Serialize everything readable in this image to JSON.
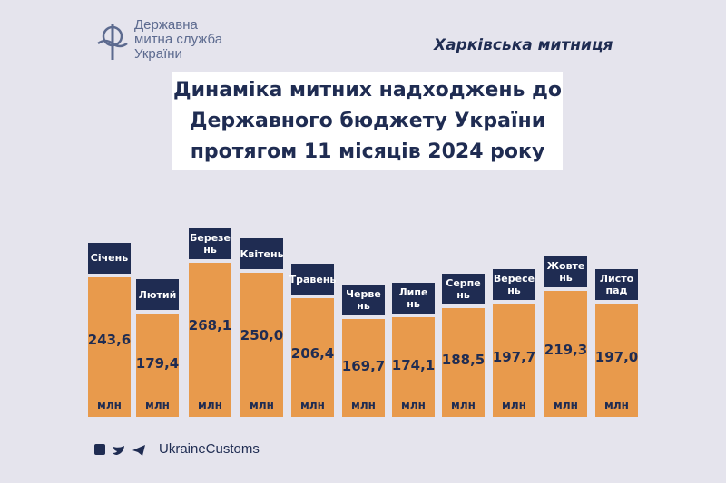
{
  "header": {
    "logo_text": "Державна\nмитна служба\nУкраїни",
    "office": "Харківська митниця"
  },
  "chart_data": {
    "type": "bar",
    "title": "Динаміка митних надходжень до\nДержавного бюджету України\nпротягом 11 місяців 2024 року",
    "categories": [
      "Січень",
      "Лютий",
      "Березе\nнь",
      "Квітень",
      "Травень",
      "Черве\nнь",
      "Липе\nнь",
      "Серпе\nнь",
      "Вересе\nнь",
      "Жовте\nнь",
      "Листо\nпад"
    ],
    "values": [
      243.6,
      179.4,
      268.1,
      250.0,
      206.4,
      169.7,
      174.1,
      188.5,
      197.7,
      219.3,
      197.0
    ],
    "value_labels": [
      "243,6",
      "179,4",
      "268,1",
      "250,0",
      "206,4",
      "169,7",
      "174,1",
      "188,5",
      "197,7",
      "219,3",
      "197,0"
    ],
    "unit": "млн",
    "color": "#e89a4c",
    "label_color": "#1f2c52"
  },
  "footer": {
    "handle": "UkraineCustoms"
  }
}
